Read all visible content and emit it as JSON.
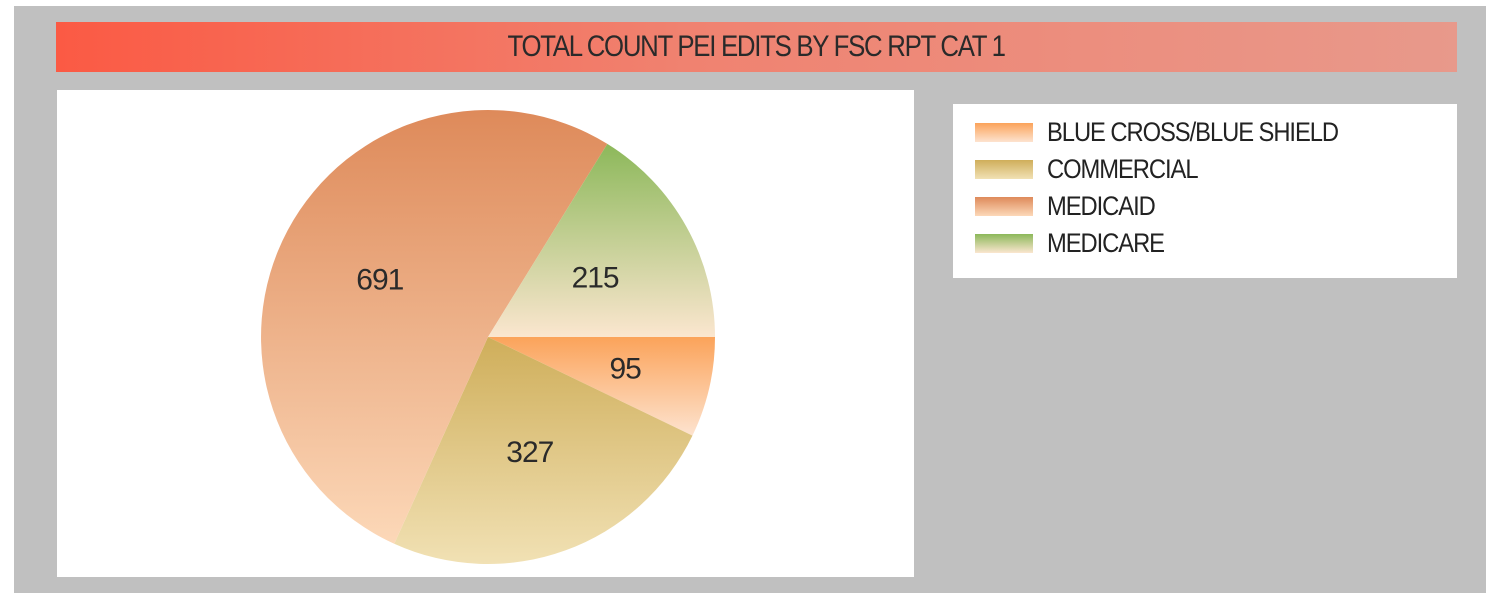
{
  "chart_data": {
    "type": "pie",
    "title": "TOTAL COUNT PEI EDITS BY FSC RPT CAT 1",
    "slices": [
      {
        "label": "BLUE CROSS/BLUE SHIELD",
        "value": 95,
        "color": "#fba35a",
        "color_light": "#fde3cf"
      },
      {
        "label": "COMMERCIAL",
        "value": 327,
        "color": "#cfae5a",
        "color_light": "#f1e1b4"
      },
      {
        "label": "MEDICAID",
        "value": 691,
        "color": "#de8a5a",
        "color_light": "#fcd8b8"
      },
      {
        "label": "MEDICARE",
        "value": 215,
        "color": "#8cb85a",
        "color_light": "#fbe6cf"
      }
    ],
    "start_angle_deg": 0,
    "direction": "clockwise",
    "legend_position": "right",
    "data_labels": true
  }
}
